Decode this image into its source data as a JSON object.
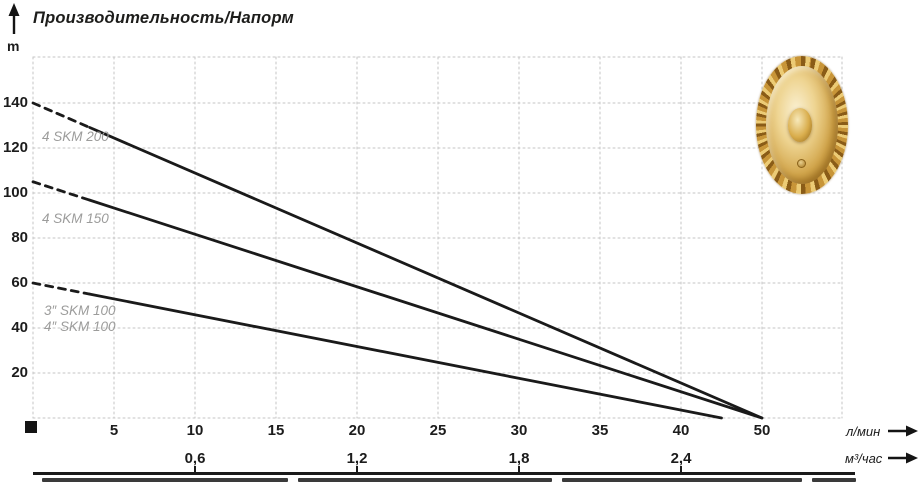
{
  "title": "Производительность/Напорм",
  "y_unit": "m",
  "x_unit_primary": "л/мин",
  "x_unit_secondary": "м³/час",
  "axis": {
    "y_labels": [
      "140",
      "120",
      "100",
      "80",
      "60",
      "40",
      "20"
    ],
    "x1_labels": [
      "5",
      "10",
      "15",
      "20",
      "25",
      "30",
      "35",
      "40",
      "50"
    ],
    "x2_labels": [
      "0,6",
      "1,2",
      "1,8",
      "2,4"
    ]
  },
  "series_labels": {
    "s200": "4 SKM 200",
    "s150": "4 SKM 150",
    "s100_3": "3″ SKM 100",
    "s100_4": "4″ SKM 100"
  },
  "colors": {
    "curve": "#1a1a1a",
    "grid": "#c6c6c6",
    "series_label_gray": "#9c9c9b",
    "text": "#1c1c1c",
    "brass": "#d2a64c"
  },
  "chart_data": {
    "type": "line",
    "title": "Производительность/Напорм",
    "ylabel": "m",
    "xlabel": "л/мин (primary), м³/час (secondary)",
    "x_ticks_l_min": [
      5,
      10,
      15,
      20,
      25,
      30,
      35,
      40,
      50
    ],
    "x_ticks_m3_h": [
      0.6,
      1.2,
      1.8,
      2.4
    ],
    "ylim": [
      0,
      160
    ],
    "grid": true,
    "legend_position": "labels inline at left of each curve",
    "series": [
      {
        "name": "4 SKM 200",
        "points": [
          [
            0,
            140
          ],
          [
            50,
            0
          ]
        ],
        "dashed_until_x": 3.5
      },
      {
        "name": "4 SKM 150",
        "points": [
          [
            0,
            105
          ],
          [
            50,
            0
          ]
        ],
        "dashed_until_x": 3.5
      },
      {
        "name": "3″/4″ SKM 100",
        "points": [
          [
            0,
            60
          ],
          [
            45,
            0
          ]
        ],
        "dashed_until_x": 3.5
      }
    ],
    "note": "tick spacing is uniform between labeled ticks; the last labeled interval jumps from 40 to 50"
  }
}
